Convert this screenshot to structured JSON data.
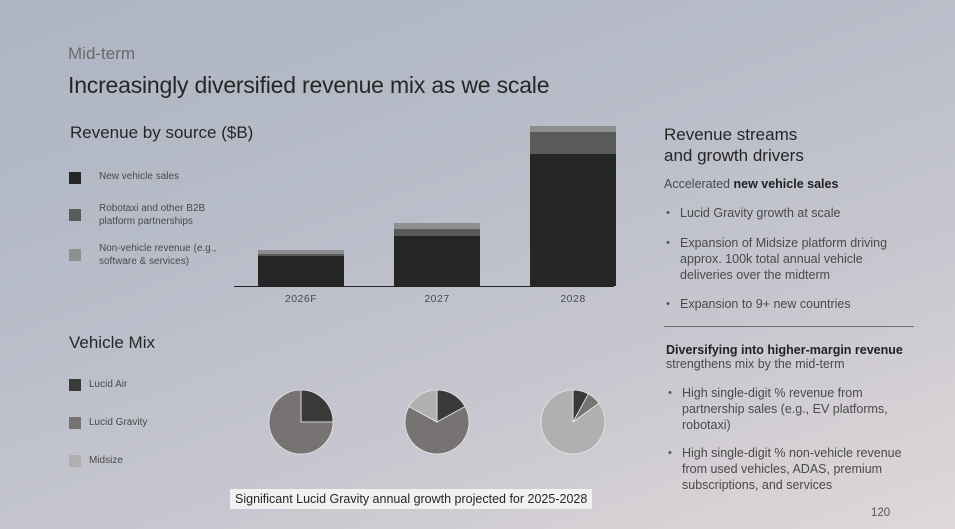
{
  "header": {
    "section_label": "Mid-term",
    "title": "Increasingly diversified revenue mix as we scale"
  },
  "revenue_chart_title": "Revenue by source ($B)",
  "vehicle_mix_title": "Vehicle Mix",
  "colors": {
    "new_vehicle_sales": "#262626",
    "robotaxi_b2b": "#5a5a5a",
    "non_vehicle": "#8e8e8e",
    "lucid_air": "#3a3a3a",
    "lucid_gravity": "#777373",
    "midsize": "#b0b0b0"
  },
  "chart_data": [
    {
      "type": "bar",
      "stacked": true,
      "title": "Revenue by source ($B)",
      "categories": [
        "2026F",
        "2027",
        "2028"
      ],
      "series": [
        {
          "name": "New vehicle sales",
          "values": [
            3.0,
            5.0,
            13.2
          ]
        },
        {
          "name": "Robotaxi and other B2B platform partnerships",
          "values": [
            0.2,
            0.7,
            2.2
          ]
        },
        {
          "name": "Non-vehicle revenue (e.g., software & services)",
          "values": [
            0.4,
            0.6,
            0.6
          ]
        }
      ],
      "ylim": [
        0,
        16
      ],
      "legend_position": "left"
    },
    {
      "type": "pie",
      "title": "Vehicle Mix",
      "labels": [
        "Lucid Air",
        "Lucid Gravity",
        "Midsize"
      ],
      "charts": [
        {
          "category": "2026F",
          "values": [
            25,
            75,
            0
          ]
        },
        {
          "category": "2027",
          "values": [
            17,
            66,
            17
          ]
        },
        {
          "category": "2028",
          "values": [
            8,
            7,
            85
          ]
        }
      ],
      "legend_position": "left"
    }
  ],
  "right_panel": {
    "title_line1": "Revenue streams",
    "title_line2": "and growth drivers",
    "section1_prefix": "Accelerated ",
    "section1_bold": "new vehicle sales",
    "section1_bullets": [
      "Lucid Gravity growth at scale",
      "Expansion of Midsize platform driving approx. 100k total annual vehicle deliveries over the midterm",
      "Expansion to 9+ new countries"
    ],
    "section2_bold": "Diversifying into higher-margin revenue",
    "section2_sub": "strengthens mix by the mid-term",
    "section2_bullets": [
      "High single-digit % revenue from partnership sales (e.g., EV platforms, robotaxi)",
      "High single-digit % non-vehicle revenue from used vehicles, ADAS, premium subscriptions, and services"
    ]
  },
  "footnote": "Significant Lucid Gravity annual growth projected for 2025-2028",
  "page_number": "120"
}
